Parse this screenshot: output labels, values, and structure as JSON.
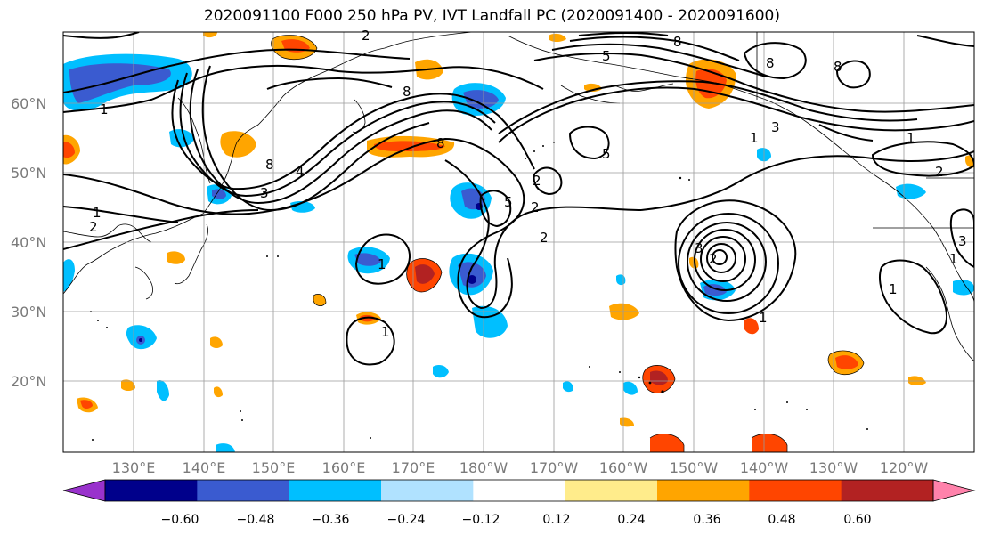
{
  "title": "2020091100 F000 250 hPa PV, IVT Landfall PC (2020091400 - 2020091600)",
  "map": {
    "lat_labels": [
      "60°N",
      "50°N",
      "40°N",
      "30°N",
      "20°N"
    ],
    "lon_labels": [
      "130°E",
      "140°E",
      "150°E",
      "160°E",
      "170°E",
      "180°W",
      "170°W",
      "160°W",
      "150°W",
      "140°W",
      "130°W",
      "120°W"
    ],
    "contour_labels": [
      "1",
      "8",
      "2",
      "8",
      "5",
      "8",
      "8",
      "4",
      "3",
      "8",
      "3",
      "1",
      "2",
      "1",
      "2",
      "1",
      "8",
      "5",
      "2",
      "5",
      "2",
      "1",
      "1",
      "3",
      "1",
      "2",
      "1",
      "1",
      "2",
      "3"
    ]
  },
  "colorbar": {
    "tick_labels": [
      "−0.60",
      "−0.48",
      "−0.36",
      "−0.24",
      "−0.12",
      "0.12",
      "0.24",
      "0.36",
      "0.48",
      "0.60"
    ],
    "colors": [
      "#9932cc",
      "#00008b",
      "#3a5bd0",
      "#00bfff",
      "#b0e2ff",
      "#ffffff",
      "#ffec8b",
      "#ffa500",
      "#ff4500",
      "#b22222",
      "#ff82ab"
    ]
  }
}
